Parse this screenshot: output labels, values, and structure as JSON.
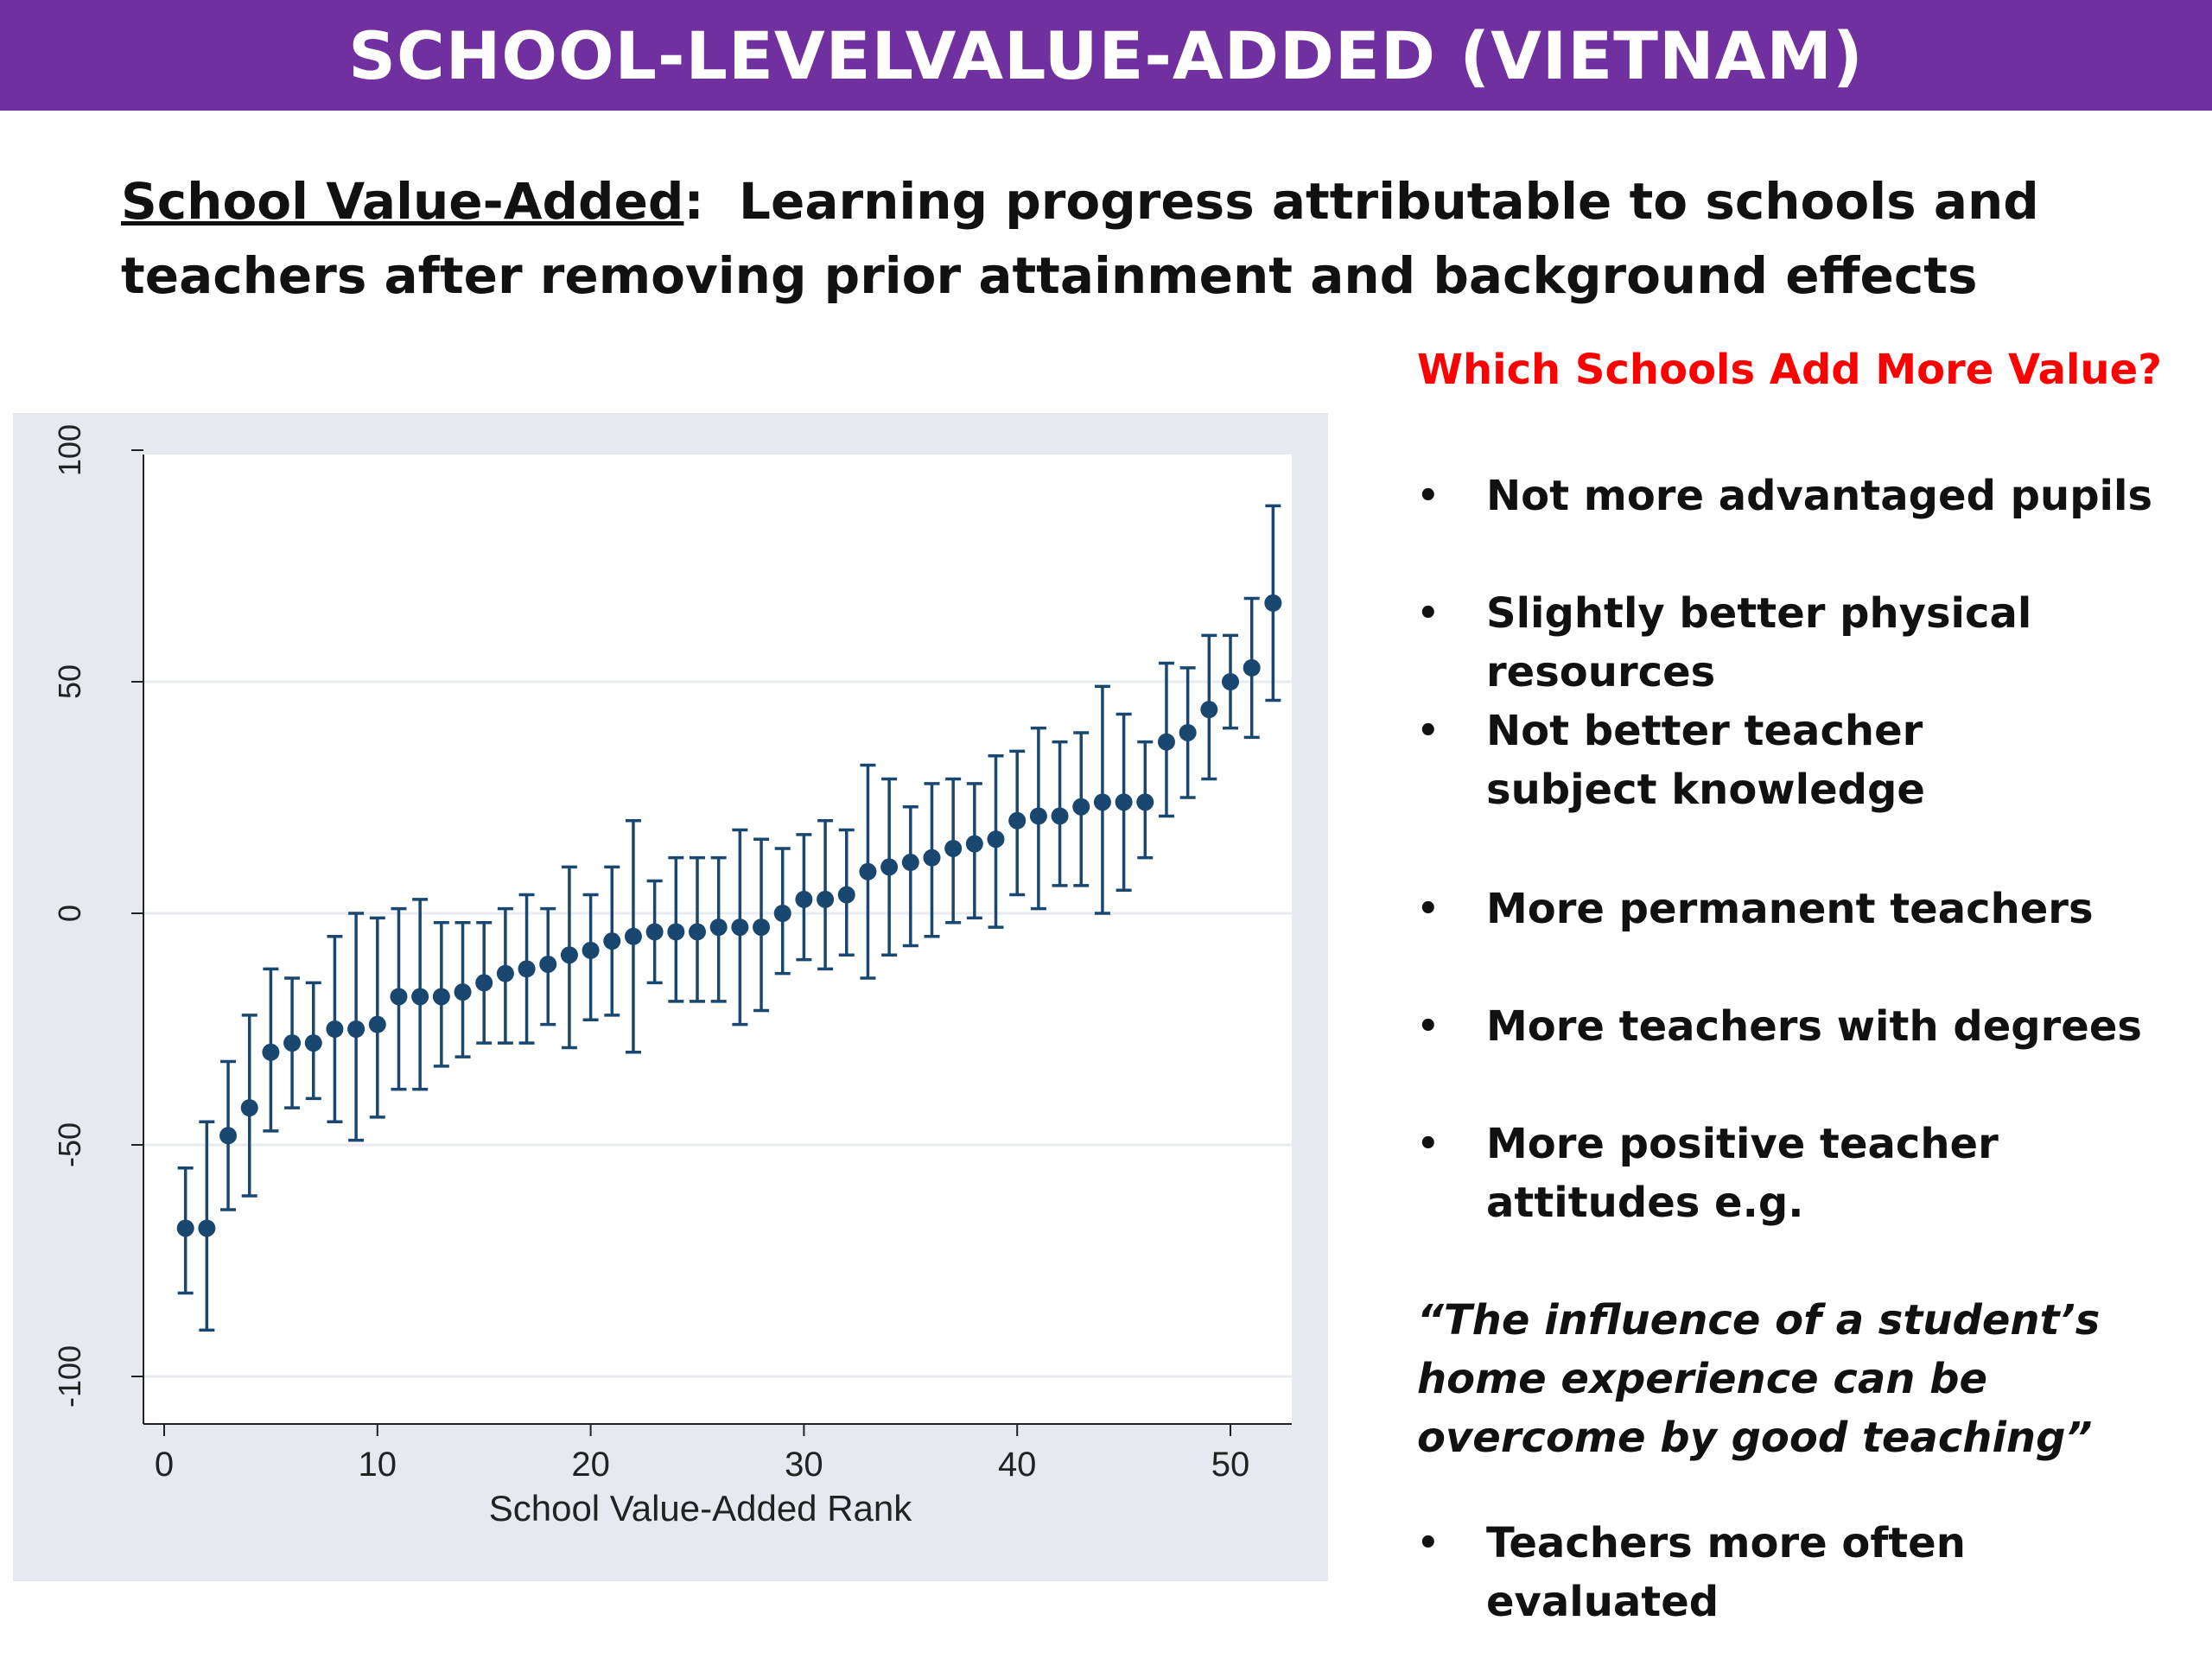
{
  "title": "SCHOOL-LEVELVALUE-ADDED (VIETNAM)",
  "definition": {
    "term": "School Value-Added",
    "separator": ":  ",
    "text": "Learning progress attributable to schools and teachers after removing prior attainment and background effects"
  },
  "sidebar": {
    "question": "Which Schools Add More Value?",
    "bullets_top": [
      "Not  more advantaged pupils",
      "Slightly better physical resources",
      "Not better teacher subject knowledge",
      "More permanent teachers",
      "More teachers with degrees",
      "More positive teacher attitudes e.g."
    ],
    "quote": "“The influence of a student’s home experience can be overcome by good teaching”",
    "bullets_bottom": [
      "Teachers more often evaluated"
    ],
    "bullet_symbol": "•"
  },
  "colors": {
    "title_bg": "#7030a0",
    "question": "#ff0000",
    "marker": "#1a476f",
    "panel_bg": "#e6eaee",
    "plot_bg": "#ffffff"
  },
  "chart_data": {
    "type": "scatter",
    "subtype": "point estimates with error bars",
    "xlabel": "School Value-Added Rank",
    "ylabel": "",
    "xlim": [
      0,
      52
    ],
    "ylim": [
      -100,
      100
    ],
    "xticks": [
      0,
      10,
      20,
      30,
      40,
      50
    ],
    "yticks": [
      -100,
      -50,
      0,
      50,
      100
    ],
    "grid": true,
    "series": [
      {
        "x": [
          1,
          2,
          3,
          4,
          5,
          6,
          7,
          8,
          9,
          10,
          11,
          12,
          13,
          14,
          15,
          16,
          17,
          18,
          19,
          20,
          21,
          22,
          23,
          24,
          25,
          26,
          27,
          28,
          29,
          30,
          31,
          32,
          33,
          34,
          35,
          36,
          37,
          38,
          39,
          40,
          41,
          42,
          43,
          44,
          45,
          46,
          47,
          48,
          49,
          50,
          51,
          52
        ],
        "y": [
          -68,
          -68,
          -48,
          -42,
          -30,
          -28,
          -28,
          -25,
          -25,
          -24,
          -18,
          -18,
          -18,
          -17,
          -15,
          -13,
          -12,
          -11,
          -9,
          -8,
          -6,
          -5,
          -4,
          -4,
          -4,
          -3,
          -3,
          -3,
          0,
          3,
          3,
          4,
          9,
          10,
          11,
          12,
          14,
          15,
          16,
          20,
          21,
          21,
          23,
          24,
          24,
          24,
          37,
          39,
          44,
          50,
          53,
          67
        ],
        "lower": [
          -82,
          -90,
          -64,
          -61,
          -47,
          -42,
          -40,
          -45,
          -49,
          -44,
          -38,
          -38,
          -33,
          -31,
          -28,
          -28,
          -28,
          -24,
          -29,
          -23,
          -22,
          -30,
          -15,
          -19,
          -19,
          -19,
          -24,
          -21,
          -13,
          -10,
          -12,
          -9,
          -14,
          -9,
          -7,
          -5,
          -2,
          -1,
          -3,
          4,
          1,
          6,
          6,
          0,
          5,
          12,
          21,
          25,
          29,
          40,
          38,
          46
        ],
        "upper": [
          -55,
          -45,
          -32,
          -22,
          -12,
          -14,
          -15,
          -5,
          0,
          -1,
          1,
          3,
          -2,
          -2,
          -2,
          1,
          4,
          1,
          10,
          4,
          10,
          20,
          7,
          12,
          12,
          12,
          18,
          16,
          14,
          17,
          20,
          18,
          32,
          29,
          23,
          28,
          29,
          28,
          34,
          35,
          40,
          37,
          39,
          49,
          43,
          37,
          54,
          53,
          60,
          60,
          68,
          88
        ]
      }
    ]
  }
}
